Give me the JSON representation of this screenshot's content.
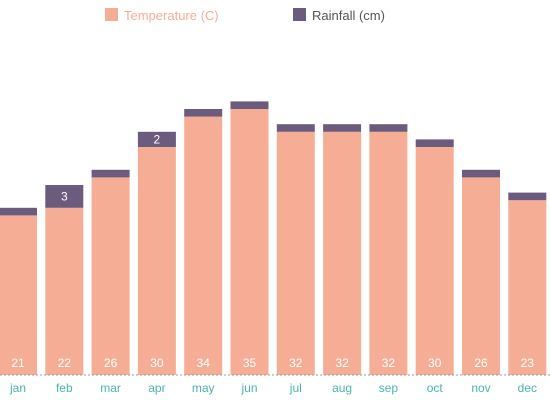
{
  "chart_data": {
    "type": "bar",
    "stacked": true,
    "categories": [
      "jan",
      "feb",
      "mar",
      "apr",
      "may",
      "jun",
      "jul",
      "aug",
      "sep",
      "oct",
      "nov",
      "dec"
    ],
    "series": [
      {
        "name": "Temperature (C)",
        "color": "#f5ae95",
        "values": [
          21,
          22,
          26,
          30,
          34,
          35,
          32,
          32,
          32,
          30,
          26,
          23
        ],
        "labels": [
          "21",
          "22",
          "26",
          "30",
          "34",
          "35",
          "32",
          "32",
          "32",
          "30",
          "26",
          "23"
        ]
      },
      {
        "name": "Rainfall (cm)",
        "color": "#6b5b7d",
        "values": [
          1,
          3,
          1,
          2,
          1,
          1,
          1,
          1,
          1,
          1,
          1,
          1
        ],
        "labels": [
          "",
          "3",
          "",
          "2",
          "",
          "",
          "",
          "",
          "",
          "",
          "",
          ""
        ]
      }
    ],
    "legend_position": "top",
    "tick_color": "#4bb3ad",
    "grid": false
  }
}
